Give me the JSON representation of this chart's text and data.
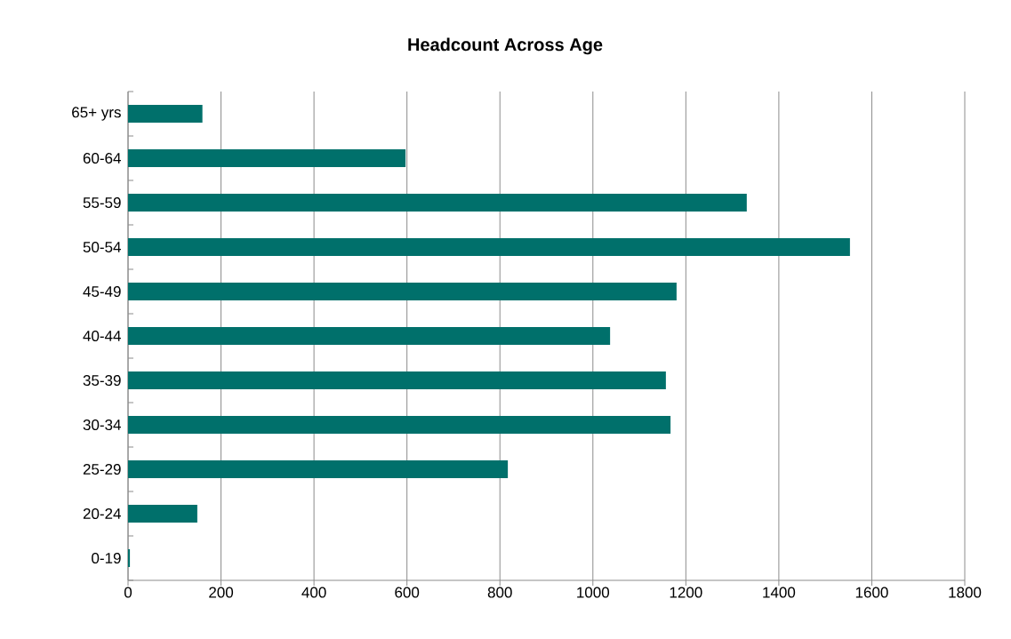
{
  "chart_data": {
    "type": "bar",
    "orientation": "horizontal",
    "title": "Headcount Across Age",
    "categories": [
      "65+ yrs",
      "60-64",
      "55-59",
      "50-54",
      "45-49",
      "40-44",
      "35-39",
      "30-34",
      "25-29",
      "20-24",
      "0-19"
    ],
    "values": [
      160,
      597,
      1331,
      1553,
      1180,
      1037,
      1157,
      1167,
      817,
      149,
      4
    ],
    "color": "#00706b",
    "xlim": [
      0,
      1800
    ],
    "xticks": [
      0,
      200,
      400,
      600,
      800,
      1000,
      1200,
      1400,
      1600,
      1800
    ],
    "grid": "x"
  }
}
